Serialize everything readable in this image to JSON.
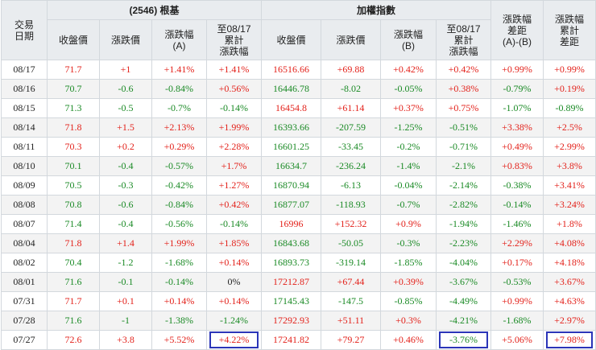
{
  "headers": {
    "date": "交易\n日期",
    "stock_group": "(2546) 根基",
    "index_group": "加權指數",
    "spread": "漲跌幅\n差距\n(A)-(B)",
    "cum_spread": "漲跌幅\n累計\n差距",
    "stock_cols": [
      "收盤價",
      "漲跌價",
      "漲跌幅\n(A)",
      "至08/17\n累計\n漲跌幅"
    ],
    "index_cols": [
      "收盤價",
      "漲跌價",
      "漲跌幅\n(B)",
      "至08/17\n累計\n漲跌幅"
    ]
  },
  "rows": [
    [
      "08/17",
      "71.7",
      "+1",
      "+1.41%",
      "+1.41%",
      "16516.66",
      "+69.88",
      "+0.42%",
      "+0.42%",
      "+0.99%",
      "+0.99%"
    ],
    [
      "08/16",
      "70.7",
      "-0.6",
      "-0.84%",
      "+0.56%",
      "16446.78",
      "-8.02",
      "-0.05%",
      "+0.38%",
      "-0.79%",
      "+0.19%"
    ],
    [
      "08/15",
      "71.3",
      "-0.5",
      "-0.7%",
      "-0.14%",
      "16454.8",
      "+61.14",
      "+0.37%",
      "+0.75%",
      "-1.07%",
      "-0.89%"
    ],
    [
      "08/14",
      "71.8",
      "+1.5",
      "+2.13%",
      "+1.99%",
      "16393.66",
      "-207.59",
      "-1.25%",
      "-0.51%",
      "+3.38%",
      "+2.5%"
    ],
    [
      "08/11",
      "70.3",
      "+0.2",
      "+0.29%",
      "+2.28%",
      "16601.25",
      "-33.45",
      "-0.2%",
      "-0.71%",
      "+0.49%",
      "+2.99%"
    ],
    [
      "08/10",
      "70.1",
      "-0.4",
      "-0.57%",
      "+1.7%",
      "16634.7",
      "-236.24",
      "-1.4%",
      "-2.1%",
      "+0.83%",
      "+3.8%"
    ],
    [
      "08/09",
      "70.5",
      "-0.3",
      "-0.42%",
      "+1.27%",
      "16870.94",
      "-6.13",
      "-0.04%",
      "-2.14%",
      "-0.38%",
      "+3.41%"
    ],
    [
      "08/08",
      "70.8",
      "-0.6",
      "-0.84%",
      "+0.42%",
      "16877.07",
      "-118.93",
      "-0.7%",
      "-2.82%",
      "-0.14%",
      "+3.24%"
    ],
    [
      "08/07",
      "71.4",
      "-0.4",
      "-0.56%",
      "-0.14%",
      "16996",
      "+152.32",
      "+0.9%",
      "-1.94%",
      "-1.46%",
      "+1.8%"
    ],
    [
      "08/04",
      "71.8",
      "+1.4",
      "+1.99%",
      "+1.85%",
      "16843.68",
      "-50.05",
      "-0.3%",
      "-2.23%",
      "+2.29%",
      "+4.08%"
    ],
    [
      "08/02",
      "70.4",
      "-1.2",
      "-1.68%",
      "+0.14%",
      "16893.73",
      "-319.14",
      "-1.85%",
      "-4.04%",
      "+0.17%",
      "+4.18%"
    ],
    [
      "08/01",
      "71.6",
      "-0.1",
      "-0.14%",
      "0%",
      "17212.87",
      "+67.44",
      "+0.39%",
      "-3.67%",
      "-0.53%",
      "+3.67%"
    ],
    [
      "07/31",
      "71.7",
      "+0.1",
      "+0.14%",
      "+0.14%",
      "17145.43",
      "-147.5",
      "-0.85%",
      "-4.49%",
      "+0.99%",
      "+4.63%"
    ],
    [
      "07/28",
      "71.6",
      "-1",
      "-1.38%",
      "-1.24%",
      "17292.93",
      "+51.11",
      "+0.3%",
      "-4.21%",
      "-1.68%",
      "+2.97%"
    ],
    [
      "07/27",
      "72.6",
      "+3.8",
      "+5.52%",
      "+4.22%",
      "17241.82",
      "+79.27",
      "+0.46%",
      "-3.76%",
      "+5.06%",
      "+7.98%"
    ]
  ],
  "highlight": {
    "row": "07/27",
    "cells": [
      4,
      8,
      10
    ],
    "color": "#2b35b8"
  },
  "colors": {
    "up": "#e3221b",
    "down": "#1a8a25",
    "flat": "#1f1f1f",
    "header_bg": "#e9ecef"
  }
}
